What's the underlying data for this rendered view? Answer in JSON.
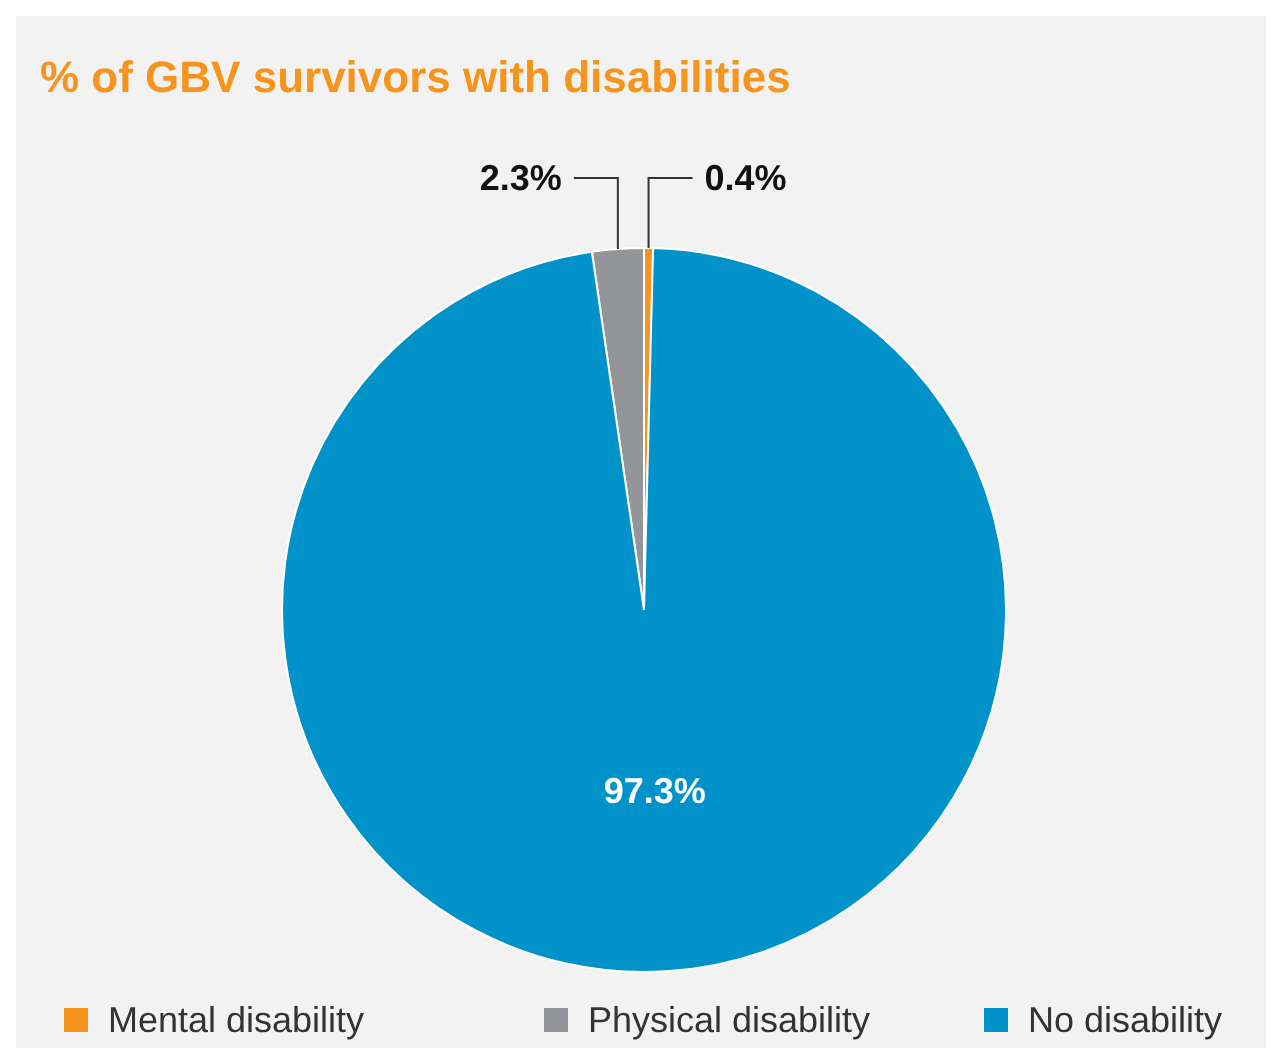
{
  "chart_data": {
    "type": "pie",
    "title": "% of GBV survivors with disabilities",
    "categories": [
      "Mental disability",
      "Physical disability",
      "No disability"
    ],
    "values": [
      0.4,
      2.3,
      97.3
    ],
    "colors": [
      "#f7941d",
      "#939598",
      "#0092c8"
    ],
    "value_labels": [
      "0.4%",
      "2.3%",
      "97.3%"
    ],
    "legend": "bottom"
  }
}
